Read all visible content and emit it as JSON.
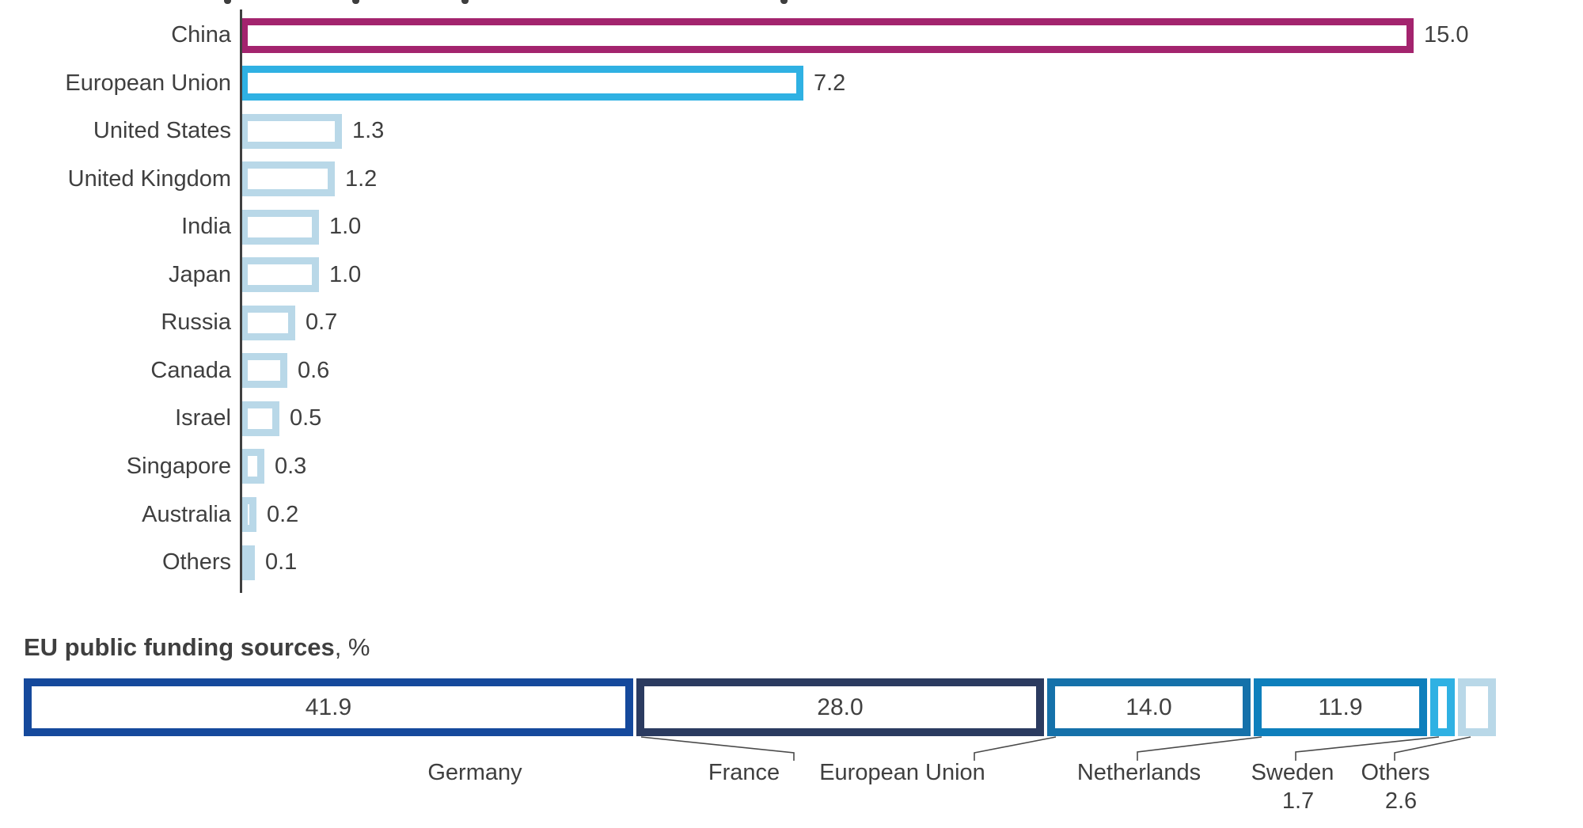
{
  "bottom_title": {
    "bold": "EU public funding sources",
    "suffix": ", %"
  },
  "chart_data": [
    {
      "type": "bar",
      "orientation": "horizontal",
      "style": "hollow-outlined-bars",
      "title": "",
      "xlabel": "",
      "ylabel": "",
      "xlim": [
        0,
        15.2
      ],
      "grid": false,
      "categories": [
        "China",
        "European Union",
        "United States",
        "United Kingdom",
        "India",
        "Japan",
        "Russia",
        "Canada",
        "Israel",
        "Singapore",
        "Australia",
        "Others"
      ],
      "values": [
        15.0,
        7.2,
        1.3,
        1.2,
        1.0,
        1.0,
        0.7,
        0.6,
        0.5,
        0.3,
        0.2,
        0.1
      ],
      "bar_colors": [
        "#A3246E",
        "#2FB1E3",
        "#B9D8E8",
        "#B9D8E8",
        "#B9D8E8",
        "#B9D8E8",
        "#B9D8E8",
        "#B9D8E8",
        "#B9D8E8",
        "#B9D8E8",
        "#B9D8E8",
        "#B9D8E8"
      ],
      "value_label_decimals": 1
    },
    {
      "type": "bar",
      "subtype": "stacked-100-percent",
      "title": "EU public funding sources, %",
      "segments": [
        {
          "label": "Germany",
          "value": 41.9,
          "color": "#15499C",
          "value_inside": true
        },
        {
          "label": "France",
          "value": 28.0,
          "color": "#2B3B60",
          "value_inside": true
        },
        {
          "label": "European Union",
          "value": 14.0,
          "color": "#1571AA",
          "value_inside": true
        },
        {
          "label": "Netherlands",
          "value": 11.9,
          "color": "#0E7FBC",
          "value_inside": true
        },
        {
          "label": "Sweden",
          "value": 1.7,
          "color": "#2FB1E3",
          "value_inside": false
        },
        {
          "label": "Others",
          "value": 2.6,
          "color": "#B9D8E8",
          "value_inside": false
        }
      ]
    }
  ],
  "style_colors": {
    "axis": "#404040",
    "text": "#3F3F3F",
    "highlight_magenta": "#A3246E",
    "highlight_cyan": "#2FB1E3",
    "muted_light_blue": "#B9D8E8",
    "leader_line": "#4A4A4A"
  }
}
